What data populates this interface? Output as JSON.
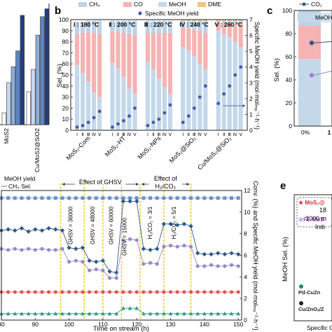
{
  "panels": {
    "b": "b",
    "c": "c",
    "e": "e"
  },
  "chart_data": [
    {
      "id": "panel-a-fragment",
      "type": "bar",
      "categories": [
        "MoS2",
        "Cu/MoS2@SiO2"
      ],
      "xtick_labels": [
        "MoS2",
        "Cu/MoS2@SiO2"
      ],
      "series": [
        {
          "values": [
            0.9,
            2.5
          ],
          "color": "#ffffff"
        },
        {
          "values": [
            3.2,
            4.2
          ],
          "color": "#c7d7ee"
        },
        {
          "values": [
            4.4,
            6.8
          ],
          "color": "#8eaedb"
        },
        {
          "values": [
            5.6,
            8.2
          ],
          "color": "#5a86c2"
        },
        {
          "values": [
            8.3,
            8.8
          ],
          "color": "#223e86"
        }
      ]
    },
    {
      "id": "panel-b",
      "type": "bar",
      "stacked": true,
      "ylabel": "Sel. (%)",
      "y2label": "Specific MeOH yield (mol·molₘₒ⁻¹·h⁻¹)",
      "ylim": [
        0,
        100
      ],
      "yticks": [
        "0",
        "10",
        "20",
        "30",
        "40",
        "50",
        "60",
        "70",
        "80",
        "90",
        "100"
      ],
      "y2ticks": [
        "0",
        "1",
        "2",
        "3",
        "4",
        "5",
        "6",
        "7"
      ],
      "y2lim": [
        0,
        7
      ],
      "legend": [
        "CH4",
        "CO",
        "MeOH",
        "DME",
        "Specific MeOH yield"
      ],
      "legend_labels": {
        "ch4": "CH₄",
        "co": "CO",
        "meoh": "MeOH",
        "dme": "DME",
        "yield": "Specific MeOH yield"
      },
      "colors": {
        "ch4": "#bcd3e6",
        "co": "#f5b3b3",
        "meoh": "#bcd3e6",
        "dme": "#f6c281",
        "meoh_fill": "#c4d8ea",
        "yield_marker": "#4a5aa8"
      },
      "temperature_labels": [
        "Ⅰ : 180 °C",
        "Ⅱ : 200 °C",
        "Ⅲ : 220 °C",
        "Ⅳ : 240 °C",
        "Ⅴ : 260 °C"
      ],
      "groups": [
        "MoS2-Com",
        "MoS2-HT",
        "MoS2-NPs",
        "MoS2@SiO2",
        "Cu/MoS2@SiO2"
      ],
      "group_labels": [
        "MoS₂-Com",
        "MoS₂-HT",
        "MoS₂-NPs",
        "MoS₂@SiO₂",
        "Cu/MoS₂@SiO₂"
      ],
      "bar_tick_labels": [
        "Ⅰ",
        "Ⅱ",
        "Ⅲ",
        "Ⅳ",
        "Ⅴ"
      ],
      "bars": [
        {
          "meoh": 59,
          "co": 28,
          "ch4": 11,
          "dme": 0
        },
        {
          "meoh": 52,
          "co": 36,
          "ch4": 10,
          "dme": 0
        },
        {
          "meoh": 44,
          "co": 45,
          "ch4": 10,
          "dme": 0
        },
        {
          "meoh": 34,
          "co": 54,
          "ch4": 11,
          "dme": 0
        },
        {
          "meoh": 30,
          "co": 57,
          "ch4": 12,
          "dme": 0
        },
        {
          "meoh": 61,
          "co": 28,
          "ch4": 10,
          "dme": 0
        },
        {
          "meoh": 56,
          "co": 33,
          "ch4": 10,
          "dme": 0
        },
        {
          "meoh": 48,
          "co": 40,
          "ch4": 11,
          "dme": 0
        },
        {
          "meoh": 38,
          "co": 49,
          "ch4": 12,
          "dme": 0
        },
        {
          "meoh": 33,
          "co": 53,
          "ch4": 13,
          "dme": 0
        },
        {
          "meoh": 62,
          "co": 26,
          "ch4": 11,
          "dme": 0
        },
        {
          "meoh": 55,
          "co": 33,
          "ch4": 11,
          "dme": 0
        },
        {
          "meoh": 47,
          "co": 41,
          "ch4": 11,
          "dme": 0
        },
        {
          "meoh": 39,
          "co": 49,
          "ch4": 11,
          "dme": 0
        },
        {
          "meoh": 33,
          "co": 55,
          "ch4": 11,
          "dme": 0
        },
        {
          "meoh": 75,
          "co": 18,
          "ch4": 6,
          "dme": 1
        },
        {
          "meoh": 72,
          "co": 20,
          "ch4": 7,
          "dme": 1
        },
        {
          "meoh": 67,
          "co": 24,
          "ch4": 8,
          "dme": 1
        },
        {
          "meoh": 60,
          "co": 30,
          "ch4": 9,
          "dme": 1
        },
        {
          "meoh": 55,
          "co": 33,
          "ch4": 11,
          "dme": 1
        },
        {
          "meoh": 90,
          "co": 8,
          "ch4": 1,
          "dme": 1
        },
        {
          "meoh": 87,
          "co": 10,
          "ch4": 2,
          "dme": 1
        },
        {
          "meoh": 84,
          "co": 13,
          "ch4": 2,
          "dme": 1
        },
        {
          "meoh": 80,
          "co": 16,
          "ch4": 3,
          "dme": 1
        },
        {
          "meoh": 75,
          "co": 21,
          "ch4": 3,
          "dme": 1
        }
      ],
      "yield": [
        0.2,
        0.3,
        0.5,
        0.8,
        1.2,
        0.2,
        0.4,
        0.6,
        0.9,
        1.4,
        0.3,
        0.5,
        0.7,
        1.1,
        1.6,
        0.5,
        0.9,
        1.4,
        2.1,
        2.8,
        1.7,
        2.3,
        2.8,
        3.5,
        4.0
      ],
      "grid": false
    },
    {
      "id": "panel-c-fragment",
      "type": "bar",
      "ylabel": "Sel. (%)",
      "yticks": [
        "0",
        "20",
        "40",
        "60",
        "80",
        "100"
      ],
      "ylim": [
        0,
        100
      ],
      "legend": [
        "CO2",
        "MeOH"
      ],
      "legend_labels": {
        "co2": "CO₂",
        "meoh": "MeOH"
      },
      "categories": [
        "0%",
        "1"
      ],
      "xtick_labels": [
        "0%",
        "1"
      ],
      "bars": [
        {
          "meoh": 58,
          "co": 29,
          "ch4": 13
        }
      ],
      "points": [
        72,
        44
      ]
    },
    {
      "id": "panel-d",
      "type": "line",
      "xlabel": "Time on stream (h)",
      "ylabel": "Conv. (%) and Specific MeOH yield (mol·molₘₒ⁻¹·h⁻¹)",
      "xlim": [
        80,
        151
      ],
      "ylim": [
        0,
        12
      ],
      "xticks": [
        "80",
        "90",
        "100",
        "110",
        "120",
        "130",
        "140",
        "150"
      ],
      "yticks": [
        "0",
        "2",
        "4",
        "6",
        "8",
        "10",
        "12"
      ],
      "legend": [
        "MeOH yield",
        "CH4 Sel."
      ],
      "legend_labels": [
        "MeOH yield",
        "CH₄ Sel."
      ],
      "section_labels": [
        "Effect of GHSV",
        "Effect of H₂/CO₂"
      ],
      "annotations": [
        "GHSV = 36000",
        "GHSV = 48000",
        "GHSV = 60000",
        "GHSV = 15000",
        "H₂/CO₂ = 3/1",
        "H₂/CO₂ = 5/1"
      ],
      "dashed_lines_x": [
        97.5,
        104.5,
        110,
        115.5,
        121,
        128,
        136
      ],
      "series": [
        {
          "color": "#6b8fc9",
          "marker": "square",
          "x": [
            80,
            82,
            84,
            86,
            88,
            90,
            92,
            94,
            96,
            98,
            100,
            102,
            104,
            106,
            108,
            110,
            112,
            114,
            116,
            118,
            120,
            122,
            124,
            126,
            128,
            130,
            132,
            134,
            136,
            138,
            140,
            142,
            144,
            146,
            148,
            150
          ],
          "y": [
            11.3,
            11.3,
            11.3,
            11.3,
            11.3,
            11.3,
            11.3,
            11.3,
            11.3,
            11.3,
            11.3,
            11.3,
            11.3,
            11.3,
            11.3,
            11.3,
            11.3,
            11.3,
            11.3,
            11.3,
            11.3,
            11.3,
            11.3,
            11.3,
            11.3,
            11.3,
            11.3,
            11.3,
            11.3,
            11.3,
            11.3,
            11.3,
            11.3,
            11.3,
            11.3,
            11.3
          ]
        },
        {
          "color": "#2e5a88",
          "marker": "diamond",
          "x": [
            80,
            82,
            84,
            86,
            88,
            90,
            92,
            94,
            96,
            98,
            100,
            102,
            104,
            106,
            108,
            110,
            112,
            114,
            116,
            118,
            120,
            122,
            124,
            126,
            128,
            130,
            132,
            134,
            136,
            138,
            140,
            142,
            144,
            146,
            148,
            150
          ],
          "y": [
            8.3,
            8.4,
            8.3,
            8.5,
            8.2,
            8.4,
            8.3,
            8.5,
            8.4,
            8.3,
            6.7,
            6.6,
            6.7,
            5.5,
            5.4,
            5.5,
            4.5,
            4.4,
            11.0,
            11.0,
            11.0,
            6.6,
            6.5,
            6.6,
            8.9,
            8.9,
            8.8,
            8.9,
            8.7,
            6.2,
            6.1,
            6.1,
            6.2,
            6.1,
            6.2,
            6.1
          ]
        },
        {
          "color": "#9b86c7",
          "marker": "circle",
          "x": [
            80,
            82,
            84,
            86,
            88,
            90,
            92,
            94,
            96,
            98,
            100,
            102,
            104,
            106,
            108,
            110,
            112,
            114,
            116,
            118,
            120,
            122,
            124,
            126,
            128,
            130,
            132,
            134,
            136,
            138,
            140,
            142,
            144,
            146,
            148,
            150
          ],
          "y": [
            6.6,
            6.5,
            6.6,
            6.5,
            6.6,
            6.5,
            6.6,
            6.5,
            6.5,
            6.6,
            5.4,
            5.5,
            5.4,
            4.6,
            4.7,
            4.6,
            3.9,
            3.9,
            7.4,
            7.5,
            7.4,
            5.2,
            5.3,
            5.2,
            6.8,
            6.9,
            6.8,
            6.9,
            6.8,
            5.0,
            5.0,
            5.1,
            5.0,
            5.0,
            5.1,
            5.0
          ]
        },
        {
          "color": "#e05555",
          "marker": "circle",
          "x": [
            80,
            82,
            84,
            86,
            88,
            90,
            92,
            94,
            96,
            98,
            100,
            102,
            104,
            106,
            108,
            110,
            112,
            114,
            116,
            118,
            120,
            122,
            124,
            126,
            128,
            130,
            132,
            134,
            136,
            138,
            140,
            142,
            144,
            146,
            148,
            150
          ],
          "y": [
            2.6,
            2.6,
            2.6,
            2.6,
            2.6,
            2.6,
            2.6,
            2.6,
            2.6,
            2.6,
            2.6,
            2.6,
            2.6,
            2.6,
            2.6,
            2.6,
            2.6,
            2.6,
            2.6,
            2.6,
            2.6,
            2.6,
            2.6,
            2.6,
            2.6,
            2.6,
            2.6,
            2.6,
            2.6,
            2.6,
            2.6,
            2.6,
            2.6,
            2.6,
            2.6,
            2.6
          ]
        },
        {
          "color": "#3a9a8a",
          "marker": "triangle",
          "x": [
            80,
            82,
            84,
            86,
            88,
            90,
            92,
            94,
            96,
            98,
            100,
            102,
            104,
            106,
            108,
            110,
            112,
            114,
            116,
            118,
            120,
            122,
            124,
            126,
            128,
            130,
            132,
            134,
            136,
            138,
            140,
            142,
            144,
            146,
            148,
            150
          ],
          "y": [
            0.6,
            0.6,
            0.6,
            0.6,
            0.6,
            0.6,
            0.6,
            0.6,
            0.6,
            0.6,
            0.6,
            0.6,
            0.6,
            0.6,
            0.6,
            0.6,
            0.6,
            0.6,
            1.1,
            1.1,
            1.1,
            0.6,
            0.6,
            0.6,
            0.6,
            0.6,
            0.6,
            0.6,
            0.6,
            0.6,
            0.6,
            0.6,
            0.6,
            0.6,
            0.6,
            0.6
          ]
        }
      ]
    },
    {
      "id": "panel-e-fragment",
      "type": "scatter",
      "ylabel": "MeOH Sel. (%)",
      "xlabel": "Specific CH",
      "entries": [
        {
          "label": "★ MoS₂@",
          "color": "#d0343a",
          "marker": "star"
        },
        {
          "label": "☆FL-MoS",
          "color": "#9a4fc4",
          "marker": "star-open"
        },
        {
          "label": "Pd-CuZn",
          "color": "#1f8a7a",
          "marker": "circle"
        },
        {
          "label": "Cu/ZnOₓ/Z",
          "color": "#222222",
          "marker": "circle"
        }
      ],
      "box_text": [
        "18",
        "3000 m",
        "Initi"
      ]
    }
  ]
}
